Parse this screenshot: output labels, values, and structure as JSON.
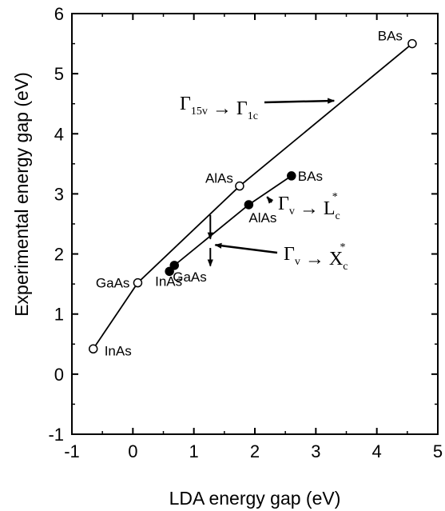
{
  "chart_data": {
    "type": "line",
    "xlabel": "LDA energy gap (eV)",
    "ylabel": "Experimental energy gap (eV)",
    "xlim": [
      -1,
      5
    ],
    "ylim": [
      -1,
      6
    ],
    "x_ticks": [
      "-1",
      "0",
      "1",
      "2",
      "3",
      "4",
      "5"
    ],
    "y_ticks": [
      "-1",
      "0",
      "1",
      "2",
      "3",
      "4",
      "5",
      "6"
    ],
    "grid": false,
    "series": [
      {
        "marker": "open-circle",
        "points": [
          {
            "label": "InAs",
            "x": -0.65,
            "y": 0.42
          },
          {
            "label": "GaAs",
            "x": 0.08,
            "y": 1.52
          },
          {
            "label": "AlAs",
            "x": 1.75,
            "y": 3.13
          },
          {
            "label": "BAs",
            "x": 4.58,
            "y": 5.5
          }
        ]
      },
      {
        "marker": "filled-circle",
        "points": [
          {
            "label": "InAs",
            "x": 0.6,
            "y": 1.71
          },
          {
            "label": "GaAs",
            "x": 0.68,
            "y": 1.81
          },
          {
            "label": "AlAs",
            "x": 1.9,
            "y": 2.82
          },
          {
            "label": "BAs",
            "x": 2.6,
            "y": 3.3
          }
        ]
      }
    ],
    "annotations": [
      {
        "base": "Γ",
        "sub": "15v",
        "arrow": "→",
        "target": "Γ",
        "target_sub": "1c",
        "points_to": [
          3.3,
          4.55
        ]
      },
      {
        "base": "Γ",
        "sub": "v",
        "arrow": "→",
        "target": "L",
        "target_sub": "c",
        "target_sup": "*",
        "points_to": [
          2.2,
          2.95
        ]
      },
      {
        "base": "Γ",
        "sub": "v",
        "arrow": "→",
        "target": "X",
        "target_sub": "c",
        "target_sup": "*",
        "points_to": [
          1.35,
          2.15
        ]
      }
    ],
    "vertical_arrows": [
      {
        "x": 1.27,
        "y_from": 2.65,
        "y_to": 2.25
      },
      {
        "x": 1.27,
        "y_from": 2.1,
        "y_to": 1.8
      }
    ]
  }
}
